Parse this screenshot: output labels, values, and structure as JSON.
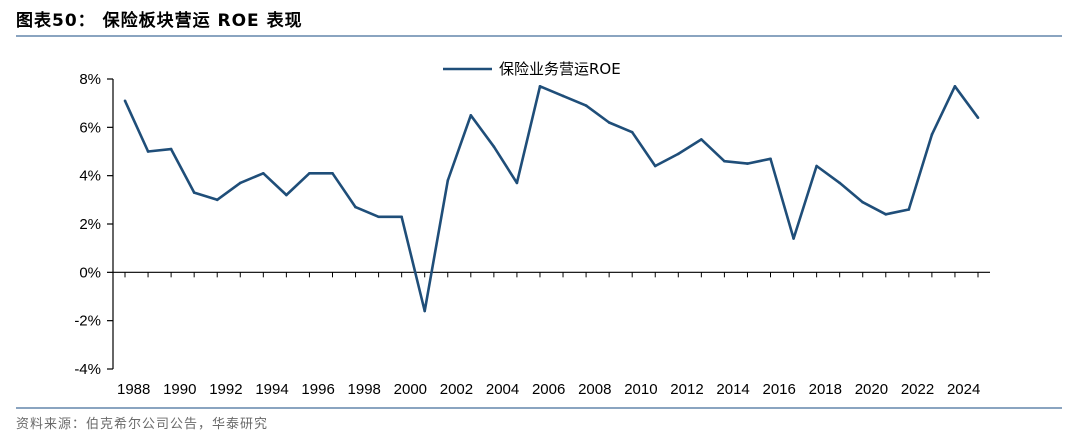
{
  "header": {
    "title": "图表50：  保险板块营运 ROE 表现"
  },
  "footer": {
    "source": "资料来源：伯克希尔公司公告，华泰研究"
  },
  "colors": {
    "series": "#1f4e79",
    "rule": "#8aa4c0"
  },
  "chart_data": {
    "type": "line",
    "title": "",
    "xlabel": "",
    "ylabel": "",
    "ylim": [
      -4,
      8
    ],
    "yticks": [
      -4,
      -2,
      0,
      2,
      4,
      6,
      8
    ],
    "ytick_labels": [
      "-4%",
      "-2%",
      "0%",
      "2%",
      "4%",
      "6%",
      "8%"
    ],
    "xtick_labels": [
      "1988",
      "1990",
      "1992",
      "1994",
      "1996",
      "1998",
      "2000",
      "2002",
      "2004",
      "2006",
      "2008",
      "2010",
      "2012",
      "2014",
      "2016",
      "2018",
      "2020",
      "2022",
      "2024"
    ],
    "grid": false,
    "legend": "top-center",
    "x": [
      1988,
      1989,
      1990,
      1991,
      1992,
      1993,
      1994,
      1995,
      1996,
      1997,
      1998,
      1999,
      2000,
      2001,
      2002,
      2003,
      2004,
      2005,
      2006,
      2007,
      2008,
      2009,
      2010,
      2011,
      2012,
      2013,
      2014,
      2015,
      2016,
      2017,
      2018,
      2019,
      2020,
      2021,
      2022,
      2023,
      2024,
      2025
    ],
    "series": [
      {
        "name": "保险业务营运ROE",
        "values": [
          7.1,
          5.0,
          5.1,
          3.3,
          3.0,
          3.7,
          4.1,
          3.2,
          4.1,
          4.1,
          2.7,
          2.3,
          2.3,
          -1.6,
          3.8,
          6.5,
          5.2,
          3.7,
          7.7,
          7.3,
          6.9,
          6.2,
          5.8,
          4.4,
          4.9,
          5.5,
          4.6,
          4.5,
          4.7,
          1.4,
          4.4,
          3.7,
          2.9,
          2.4,
          2.6,
          5.7,
          7.7,
          6.4
        ]
      }
    ]
  }
}
